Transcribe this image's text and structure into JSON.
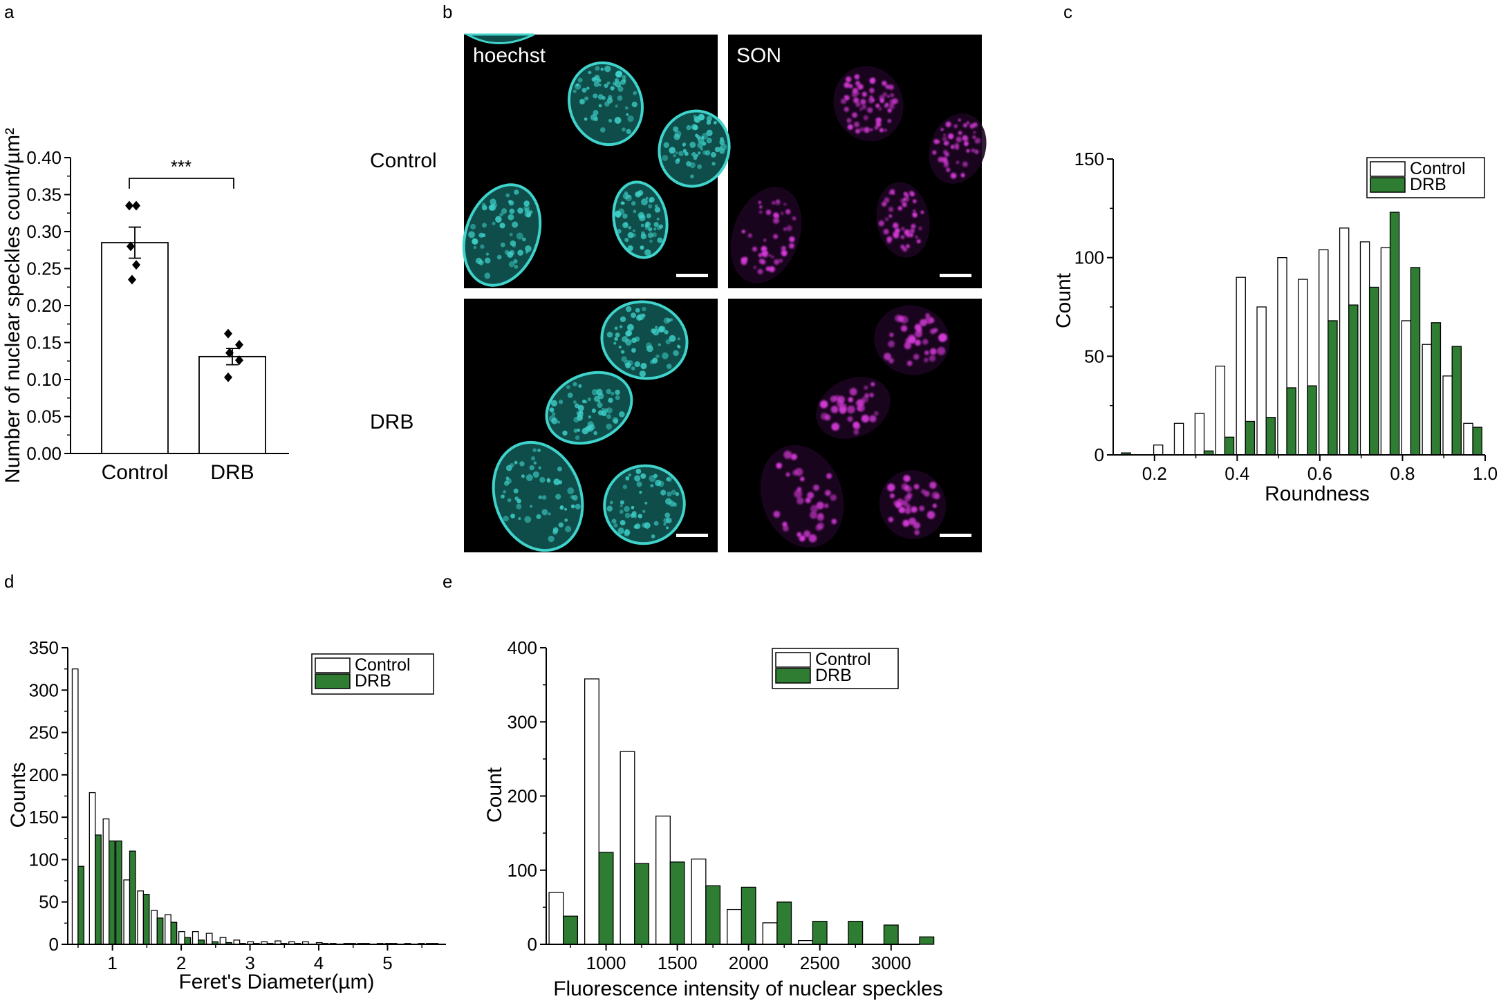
{
  "panels": {
    "a": {
      "letter": "a",
      "chart_data": {
        "type": "bar",
        "categories": [
          "Control",
          "DRB"
        ],
        "values": [
          0.285,
          0.131
        ],
        "errors": [
          0.021,
          0.011
        ],
        "points": [
          [
            0.335,
            0.335,
            0.28,
            0.255,
            0.235
          ],
          [
            0.162,
            0.147,
            0.136,
            0.126,
            0.103
          ]
        ],
        "significance": "***",
        "ylabel": "Number of nuclear speckles count/µm²",
        "ylim": [
          0,
          0.4
        ],
        "yticks": [
          "0.00",
          "0.05",
          "0.10",
          "0.15",
          "0.20",
          "0.25",
          "0.30",
          "0.35",
          "0.40"
        ]
      }
    },
    "b": {
      "letter": "b",
      "columns": [
        "hoechst",
        "SON"
      ],
      "rows": [
        "Control",
        "DRB"
      ],
      "colors": {
        "hoechst": "#3fd3cb",
        "SON": "#d63ad9"
      }
    },
    "c": {
      "letter": "c",
      "chart_data": {
        "type": "bar",
        "series": [
          {
            "name": "Control",
            "x": [
              0.12,
              0.22,
              0.27,
              0.32,
              0.37,
              0.42,
              0.47,
              0.52,
              0.57,
              0.62,
              0.67,
              0.72,
              0.77,
              0.82,
              0.87,
              0.92,
              0.97
            ],
            "values": [
              0,
              5,
              16,
              21,
              45,
              90,
              75,
              100,
              89,
              104,
              115,
              108,
              105,
              68,
              56,
              40,
              16
            ]
          },
          {
            "name": "DRB",
            "x": [
              0.12,
              0.22,
              0.27,
              0.32,
              0.37,
              0.42,
              0.47,
              0.52,
              0.57,
              0.62,
              0.67,
              0.72,
              0.77,
              0.82,
              0.87,
              0.92,
              0.97
            ],
            "values": [
              1,
              0,
              0,
              2,
              9,
              17,
              19,
              34,
              35,
              68,
              76,
              85,
              123,
              95,
              67,
              55,
              14
            ]
          }
        ],
        "xlabel": "Roundness",
        "ylabel": "Count",
        "xlim": [
          0.1,
          1.0
        ],
        "ylim": [
          0,
          150
        ],
        "xticks": [
          "0.2",
          "0.4",
          "0.6",
          "0.8",
          "1.0"
        ],
        "yticks": [
          "0",
          "50",
          "100",
          "150"
        ],
        "colors": {
          "Control": "#ffffff",
          "DRB": "#2e7d32"
        },
        "legend": "top-right"
      }
    },
    "d": {
      "letter": "d",
      "chart_data": {
        "type": "bar",
        "series": [
          {
            "name": "Control",
            "x": [
              0.5,
              0.75,
              0.95,
              1.05,
              1.25,
              1.45,
              1.65,
              1.85,
              2.05,
              2.25,
              2.45,
              2.65,
              2.85,
              3.05,
              3.25,
              3.45,
              3.65,
              3.85,
              4.05,
              4.25,
              4.45,
              4.65,
              4.85,
              5.05,
              5.25,
              5.45,
              5.65
            ],
            "values": [
              325,
              179,
              148,
              106,
              76,
              63,
              40,
              35,
              15,
              15,
              13,
              8,
              5,
              3,
              3,
              4,
              3,
              3,
              2,
              1,
              1,
              1,
              0,
              1,
              0,
              0,
              1
            ]
          },
          {
            "name": "DRB",
            "x": [
              0.5,
              0.75,
              0.95,
              1.05,
              1.25,
              1.45,
              1.65,
              1.85,
              2.05,
              2.25,
              2.45,
              2.65,
              2.85,
              3.05,
              3.25,
              3.45,
              3.65,
              3.85,
              4.05,
              4.25,
              4.45,
              4.65,
              4.85,
              5.05,
              5.25,
              5.45,
              5.65
            ],
            "values": [
              92,
              129,
              122,
              122,
              110,
              59,
              31,
              26,
              8,
              5,
              3,
              2,
              1,
              1,
              1,
              1,
              1,
              0,
              1,
              0,
              1,
              1,
              1,
              1,
              1,
              1,
              1
            ]
          }
        ],
        "xlabel": "Feret's Diameter(µm)",
        "ylabel": "Counts",
        "xlim": [
          0.35,
          5.85
        ],
        "ylim": [
          0,
          350
        ],
        "xticks": [
          "1",
          "2",
          "3",
          "4",
          "5"
        ],
        "yticks": [
          "0",
          "50",
          "100",
          "150",
          "200",
          "250",
          "300",
          "350"
        ],
        "colors": {
          "Control": "#ffffff",
          "DRB": "#2e7d32"
        },
        "legend": "top-right"
      }
    },
    "e": {
      "letter": "e",
      "chart_data": {
        "type": "bar",
        "series": [
          {
            "name": "Control",
            "x": [
              700,
              950,
              1200,
              1450,
              1700,
              1950,
              2200,
              2450,
              2700,
              2950,
              3200
            ],
            "values": [
              70,
              358,
              260,
              173,
              115,
              47,
              29,
              5,
              0,
              0,
              0
            ]
          },
          {
            "name": "DRB",
            "x": [
              700,
              950,
              1200,
              1450,
              1700,
              1950,
              2200,
              2450,
              2700,
              2950,
              3200
            ],
            "values": [
              38,
              124,
              109,
              111,
              79,
              77,
              57,
              31,
              31,
              26,
              10
            ]
          }
        ],
        "xlabel": "Fluorescence intensity of nuclear speckles",
        "ylabel": "Count",
        "xlim": [
          580,
          3200
        ],
        "ylim": [
          0,
          400
        ],
        "xticks": [
          "1000",
          "1500",
          "2000",
          "2500",
          "3000"
        ],
        "yticks": [
          "0",
          "100",
          "200",
          "300",
          "400"
        ],
        "colors": {
          "Control": "#ffffff",
          "DRB": "#2e7d32"
        },
        "legend": "top-right"
      }
    }
  }
}
